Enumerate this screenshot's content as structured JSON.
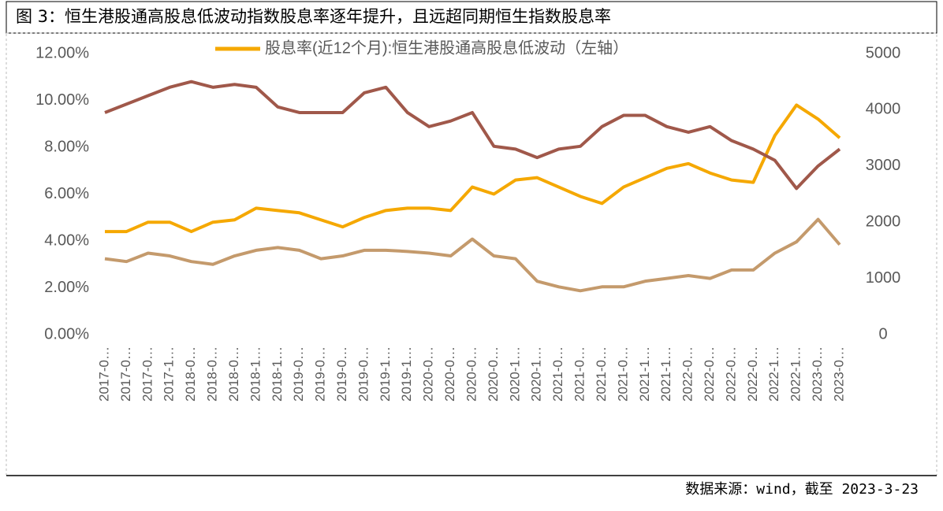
{
  "header": {
    "title": "图 3：恒生港股通高股息低波动指数股息率逐年提升，且远超同期恒生指数股息率"
  },
  "chart_data": {
    "type": "line",
    "categories": [
      "2017-0…",
      "2017-0…",
      "2017-0…",
      "2017-1…",
      "2018-0…",
      "2018-0…",
      "2018-0…",
      "2018-1…",
      "2018-1…",
      "2019-0…",
      "2019-0…",
      "2019-0…",
      "2019-0…",
      "2019-1…",
      "2019-1…",
      "2020-0…",
      "2020-0…",
      "2020-0…",
      "2020-0…",
      "2020-1…",
      "2020-1…",
      "2021-0…",
      "2021-0…",
      "2021-0…",
      "2021-0…",
      "2021-1…",
      "2021-1…",
      "2022-0…",
      "2022-0…",
      "2022-0…",
      "2022-0…",
      "2022-1…",
      "2022-1…",
      "2023-0…",
      "2023-0…"
    ],
    "series": [
      {
        "name": "股息率(近12个月):恒生港股通高股息低波动（左轴）",
        "color": "#f5a800",
        "axis": "y",
        "values": [
          4.4,
          4.4,
          4.8,
          4.8,
          4.4,
          4.8,
          4.9,
          5.4,
          5.3,
          5.2,
          4.9,
          4.6,
          5.0,
          5.3,
          5.4,
          5.4,
          5.3,
          6.3,
          6.0,
          6.6,
          6.7,
          6.3,
          5.9,
          5.6,
          6.3,
          6.7,
          7.1,
          7.3,
          6.9,
          6.6,
          6.5,
          8.5,
          9.8,
          9.2,
          8.4
        ]
      },
      {
        "color": "#a0584a",
        "axis": "y2",
        "values": [
          3950,
          4100,
          4250,
          4400,
          4500,
          4400,
          4450,
          4400,
          4050,
          3950,
          3950,
          3950,
          4300,
          4400,
          3950,
          3700,
          3800,
          3950,
          3350,
          3300,
          3150,
          3300,
          3350,
          3700,
          3900,
          3900,
          3700,
          3600,
          3700,
          3450,
          3300,
          3100,
          2600,
          3000,
          3300
        ]
      },
      {
        "color": "#c49a6c",
        "axis": "y2",
        "values": [
          1350,
          1300,
          1450,
          1400,
          1300,
          1250,
          1400,
          1500,
          1550,
          1500,
          1350,
          1400,
          1500,
          1500,
          1480,
          1450,
          1400,
          1700,
          1400,
          1350,
          950,
          850,
          780,
          850,
          850,
          950,
          1000,
          1050,
          1000,
          1150,
          1150,
          1450,
          1650,
          2050,
          1600
        ]
      }
    ],
    "ylim": [
      0,
      12
    ],
    "yticks": [
      {
        "value": 0,
        "label": "0.00%"
      },
      {
        "value": 2,
        "label": "2.00%"
      },
      {
        "value": 4,
        "label": "4.00%"
      },
      {
        "value": 6,
        "label": "6.00%"
      },
      {
        "value": 8,
        "label": "8.00%"
      },
      {
        "value": 10,
        "label": "10.00%"
      },
      {
        "value": 12,
        "label": "12.00%"
      }
    ],
    "y2lim": [
      0,
      5000
    ],
    "y2ticks": [
      0,
      1000,
      2000,
      3000,
      4000,
      5000
    ]
  },
  "footer": {
    "source": "数据来源：wind，截至 2023-3-23"
  }
}
